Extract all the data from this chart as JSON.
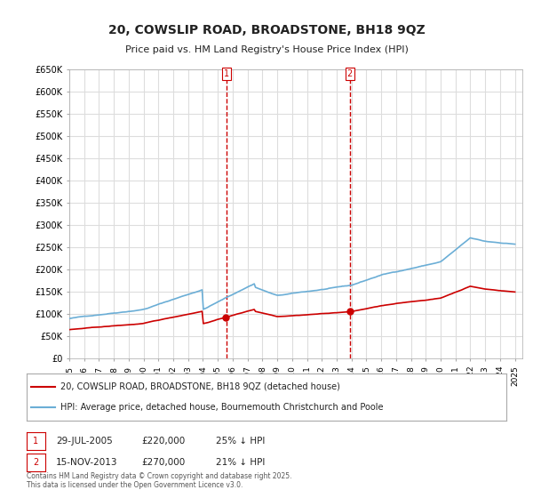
{
  "title": "20, COWSLIP ROAD, BROADSTONE, BH18 9QZ",
  "subtitle": "Price paid vs. HM Land Registry's House Price Index (HPI)",
  "ylabel_ticks": [
    "£0",
    "£50K",
    "£100K",
    "£150K",
    "£200K",
    "£250K",
    "£300K",
    "£350K",
    "£400K",
    "£450K",
    "£500K",
    "£550K",
    "£600K",
    "£650K"
  ],
  "ylim": [
    0,
    650000
  ],
  "xlim_start": 1995.0,
  "xlim_end": 2025.5,
  "hpi_color": "#6baed6",
  "price_color": "#cc0000",
  "marker1_date": 2005.57,
  "marker1_price": 220000,
  "marker1_label": "1",
  "marker2_date": 2013.88,
  "marker2_price": 270000,
  "marker2_label": "2",
  "legend_line1": "20, COWSLIP ROAD, BROADSTONE, BH18 9QZ (detached house)",
  "legend_line2": "HPI: Average price, detached house, Bournemouth Christchurch and Poole",
  "annotation1_num": "1",
  "annotation1_date": "29-JUL-2005",
  "annotation1_price": "£220,000",
  "annotation1_hpi": "25% ↓ HPI",
  "annotation2_num": "2",
  "annotation2_date": "15-NOV-2013",
  "annotation2_price": "£270,000",
  "annotation2_hpi": "21% ↓ HPI",
  "footnote": "Contains HM Land Registry data © Crown copyright and database right 2025.\nThis data is licensed under the Open Government Licence v3.0.",
  "background_color": "#ffffff",
  "grid_color": "#dddddd"
}
